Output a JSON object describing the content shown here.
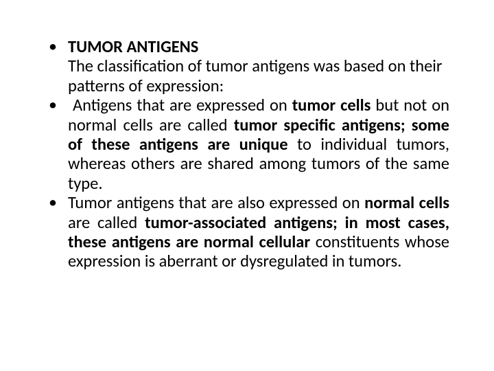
{
  "slide": {
    "background_color": "#ffffff",
    "text_color": "#000000",
    "font_family": "Calibri",
    "base_fontsize_pt": 18,
    "line_height": 1.16,
    "bullet_char": "•",
    "bullets": [
      {
        "title": "TUMOR ANTIGENS",
        "subtext_runs": [
          {
            "t": "The classification of tumor antigens was based on their patterns of expression:",
            "b": false
          }
        ],
        "justify": false
      },
      {
        "leading_space": true,
        "runs": [
          {
            "t": "Antigens that are expressed on ",
            "b": false
          },
          {
            "t": "tumor cells ",
            "b": true
          },
          {
            "t": "but not on normal cells are called ",
            "b": false
          },
          {
            "t": "tumor specific antigens; some of these antigens are unique ",
            "b": true
          },
          {
            "t": "to individual tumors, whereas others are shared among tumors of the same type.",
            "b": false
          }
        ],
        "justify": true
      },
      {
        "runs": [
          {
            "t": "Tumor antigens that are also expressed on ",
            "b": false
          },
          {
            "t": "normal cells ",
            "b": true
          },
          {
            "t": "are called ",
            "b": false
          },
          {
            "t": "tumor-associated antigens; in most cases, these antigens are normal cellular ",
            "b": true
          },
          {
            "t": "constituents whose expression is aberrant or dysregulated in tumors.",
            "b": false
          }
        ],
        "justify": true
      }
    ]
  }
}
